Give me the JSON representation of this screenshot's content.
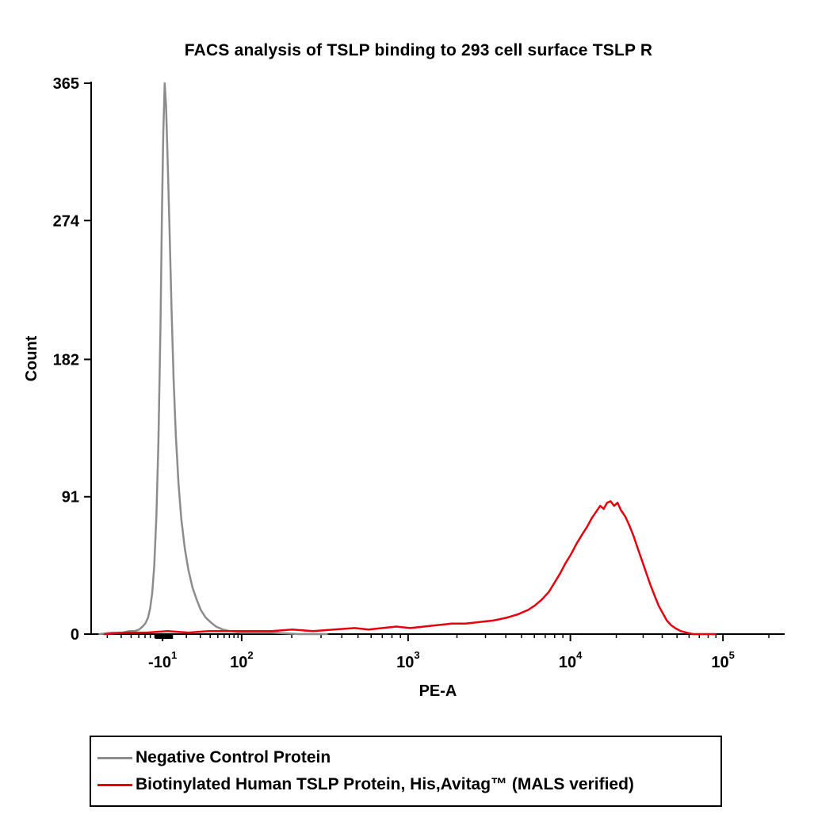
{
  "chart_data": {
    "type": "line",
    "subtype": "flow-cytometry-histogram",
    "title": "FACS analysis of  TSLP binding to 293 cell surface TSLP R",
    "xlabel": "PE-A",
    "ylabel": "Count",
    "ylim": [
      0,
      365
    ],
    "yticks": [
      0,
      91,
      182,
      274,
      365
    ],
    "x_scale": "biexponential-log",
    "xticks": [
      {
        "base": "-10",
        "exp": "1",
        "pos": 0.103
      },
      {
        "base": "10",
        "exp": "2",
        "pos": 0.217
      },
      {
        "base": "10",
        "exp": "3",
        "pos": 0.457
      },
      {
        "base": "10",
        "exp": "4",
        "pos": 0.691
      },
      {
        "base": "10",
        "exp": "5",
        "pos": 0.911
      }
    ],
    "grid": false,
    "legend_position": "bottom-left-box",
    "gate_marker": {
      "x0": 0.092,
      "x1": 0.118
    },
    "series": [
      {
        "name": "Negative Control Protein",
        "color": "#8c8c8c",
        "peak": {
          "x_pos": 0.106,
          "count": 365
        },
        "points": [
          [
            0.012,
            0
          ],
          [
            0.03,
            1
          ],
          [
            0.045,
            1
          ],
          [
            0.055,
            2
          ],
          [
            0.063,
            2
          ],
          [
            0.069,
            3
          ],
          [
            0.074,
            5
          ],
          [
            0.078,
            7
          ],
          [
            0.082,
            11
          ],
          [
            0.085,
            17
          ],
          [
            0.088,
            27
          ],
          [
            0.091,
            45
          ],
          [
            0.094,
            78
          ],
          [
            0.097,
            128
          ],
          [
            0.1,
            205
          ],
          [
            0.102,
            278
          ],
          [
            0.104,
            332
          ],
          [
            0.106,
            365
          ],
          [
            0.108,
            350
          ],
          [
            0.11,
            318
          ],
          [
            0.113,
            268
          ],
          [
            0.116,
            214
          ],
          [
            0.119,
            168
          ],
          [
            0.122,
            132
          ],
          [
            0.126,
            99
          ],
          [
            0.13,
            76
          ],
          [
            0.135,
            57
          ],
          [
            0.14,
            43
          ],
          [
            0.146,
            31
          ],
          [
            0.152,
            23
          ],
          [
            0.158,
            16
          ],
          [
            0.165,
            11
          ],
          [
            0.172,
            8
          ],
          [
            0.18,
            5
          ],
          [
            0.19,
            3
          ],
          [
            0.2,
            2
          ],
          [
            0.215,
            1
          ],
          [
            0.235,
            1
          ],
          [
            0.26,
            1
          ],
          [
            0.3,
            0
          ],
          [
            0.34,
            0
          ]
        ]
      },
      {
        "name": "Biotinylated Human TSLP Protein, His,Avitag™ (MALS verified)",
        "color": "#e8000d",
        "peak": {
          "x_pos": 0.749,
          "count": 88
        },
        "points": [
          [
            0.02,
            0
          ],
          [
            0.05,
            1
          ],
          [
            0.08,
            1
          ],
          [
            0.11,
            2
          ],
          [
            0.14,
            1
          ],
          [
            0.17,
            2
          ],
          [
            0.2,
            2
          ],
          [
            0.23,
            2
          ],
          [
            0.26,
            2
          ],
          [
            0.29,
            3
          ],
          [
            0.32,
            2
          ],
          [
            0.35,
            3
          ],
          [
            0.38,
            4
          ],
          [
            0.4,
            3
          ],
          [
            0.42,
            4
          ],
          [
            0.44,
            5
          ],
          [
            0.46,
            4
          ],
          [
            0.48,
            5
          ],
          [
            0.5,
            6
          ],
          [
            0.52,
            7
          ],
          [
            0.54,
            7
          ],
          [
            0.56,
            8
          ],
          [
            0.58,
            9
          ],
          [
            0.6,
            11
          ],
          [
            0.615,
            13
          ],
          [
            0.63,
            16
          ],
          [
            0.64,
            19
          ],
          [
            0.65,
            23
          ],
          [
            0.66,
            28
          ],
          [
            0.668,
            34
          ],
          [
            0.676,
            40
          ],
          [
            0.684,
            47
          ],
          [
            0.692,
            53
          ],
          [
            0.7,
            60
          ],
          [
            0.708,
            66
          ],
          [
            0.715,
            71
          ],
          [
            0.722,
            77
          ],
          [
            0.728,
            81
          ],
          [
            0.734,
            85
          ],
          [
            0.739,
            83
          ],
          [
            0.744,
            87
          ],
          [
            0.749,
            88
          ],
          [
            0.754,
            85
          ],
          [
            0.759,
            87
          ],
          [
            0.764,
            82
          ],
          [
            0.77,
            78
          ],
          [
            0.776,
            72
          ],
          [
            0.782,
            65
          ],
          [
            0.788,
            57
          ],
          [
            0.794,
            49
          ],
          [
            0.8,
            41
          ],
          [
            0.806,
            33
          ],
          [
            0.812,
            26
          ],
          [
            0.818,
            19
          ],
          [
            0.824,
            14
          ],
          [
            0.83,
            9
          ],
          [
            0.836,
            6
          ],
          [
            0.842,
            4
          ],
          [
            0.85,
            2
          ],
          [
            0.858,
            1
          ],
          [
            0.868,
            0
          ],
          [
            0.9,
            0
          ]
        ]
      }
    ]
  }
}
